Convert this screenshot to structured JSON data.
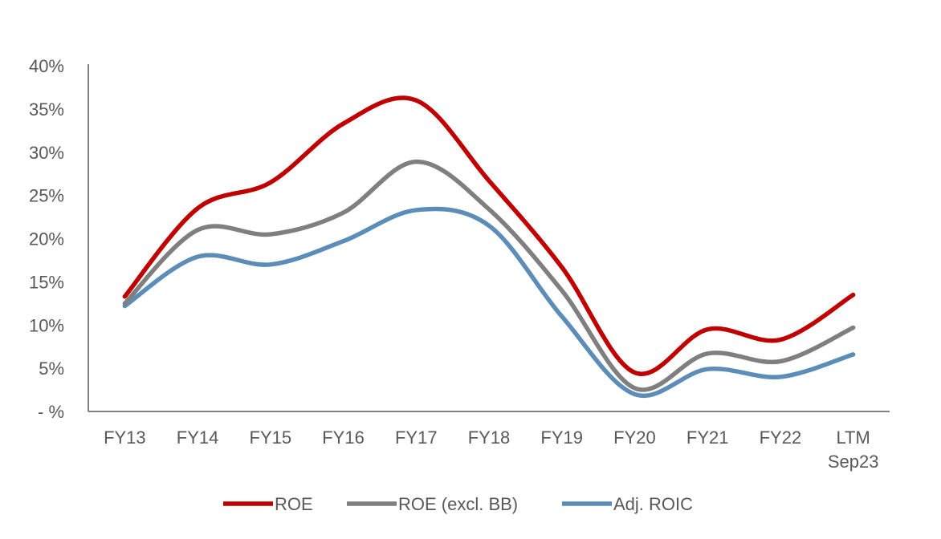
{
  "chart_data": {
    "type": "line",
    "title": "",
    "xlabel": "",
    "ylabel": "",
    "categories": [
      [
        "FY13"
      ],
      [
        "FY14"
      ],
      [
        "FY15"
      ],
      [
        "FY16"
      ],
      [
        "FY17"
      ],
      [
        "FY18"
      ],
      [
        "FY19"
      ],
      [
        "FY20"
      ],
      [
        "FY21"
      ],
      [
        "FY22"
      ],
      [
        "LTM",
        "Sep23"
      ]
    ],
    "y_ticks": [
      {
        "value": 0,
        "label": "- %"
      },
      {
        "value": 5,
        "label": "5%"
      },
      {
        "value": 10,
        "label": "10%"
      },
      {
        "value": 15,
        "label": "15%"
      },
      {
        "value": 20,
        "label": "20%"
      },
      {
        "value": 25,
        "label": "25%"
      },
      {
        "value": 30,
        "label": "30%"
      },
      {
        "value": 35,
        "label": "35%"
      },
      {
        "value": 40,
        "label": "40%"
      }
    ],
    "ylim": [
      0,
      40
    ],
    "grid": false,
    "smooth": true,
    "legend_position": "bottom",
    "series": [
      {
        "name": "ROE",
        "color": "#C00000",
        "values": [
          13.3,
          23.5,
          26.5,
          33.3,
          36.0,
          26.7,
          16.7,
          4.5,
          9.5,
          8.3,
          13.5
        ]
      },
      {
        "name": "ROE (excl. BB)",
        "color": "#7F7F7F",
        "values": [
          12.5,
          21.0,
          20.5,
          23.0,
          28.9,
          23.4,
          14.0,
          2.7,
          6.7,
          5.8,
          9.7
        ]
      },
      {
        "name": "Adj. ROIC",
        "color": "#5B8DB8",
        "values": [
          12.2,
          17.9,
          17.0,
          19.7,
          23.3,
          21.5,
          11.0,
          2.0,
          4.9,
          4.0,
          6.6
        ]
      }
    ]
  }
}
